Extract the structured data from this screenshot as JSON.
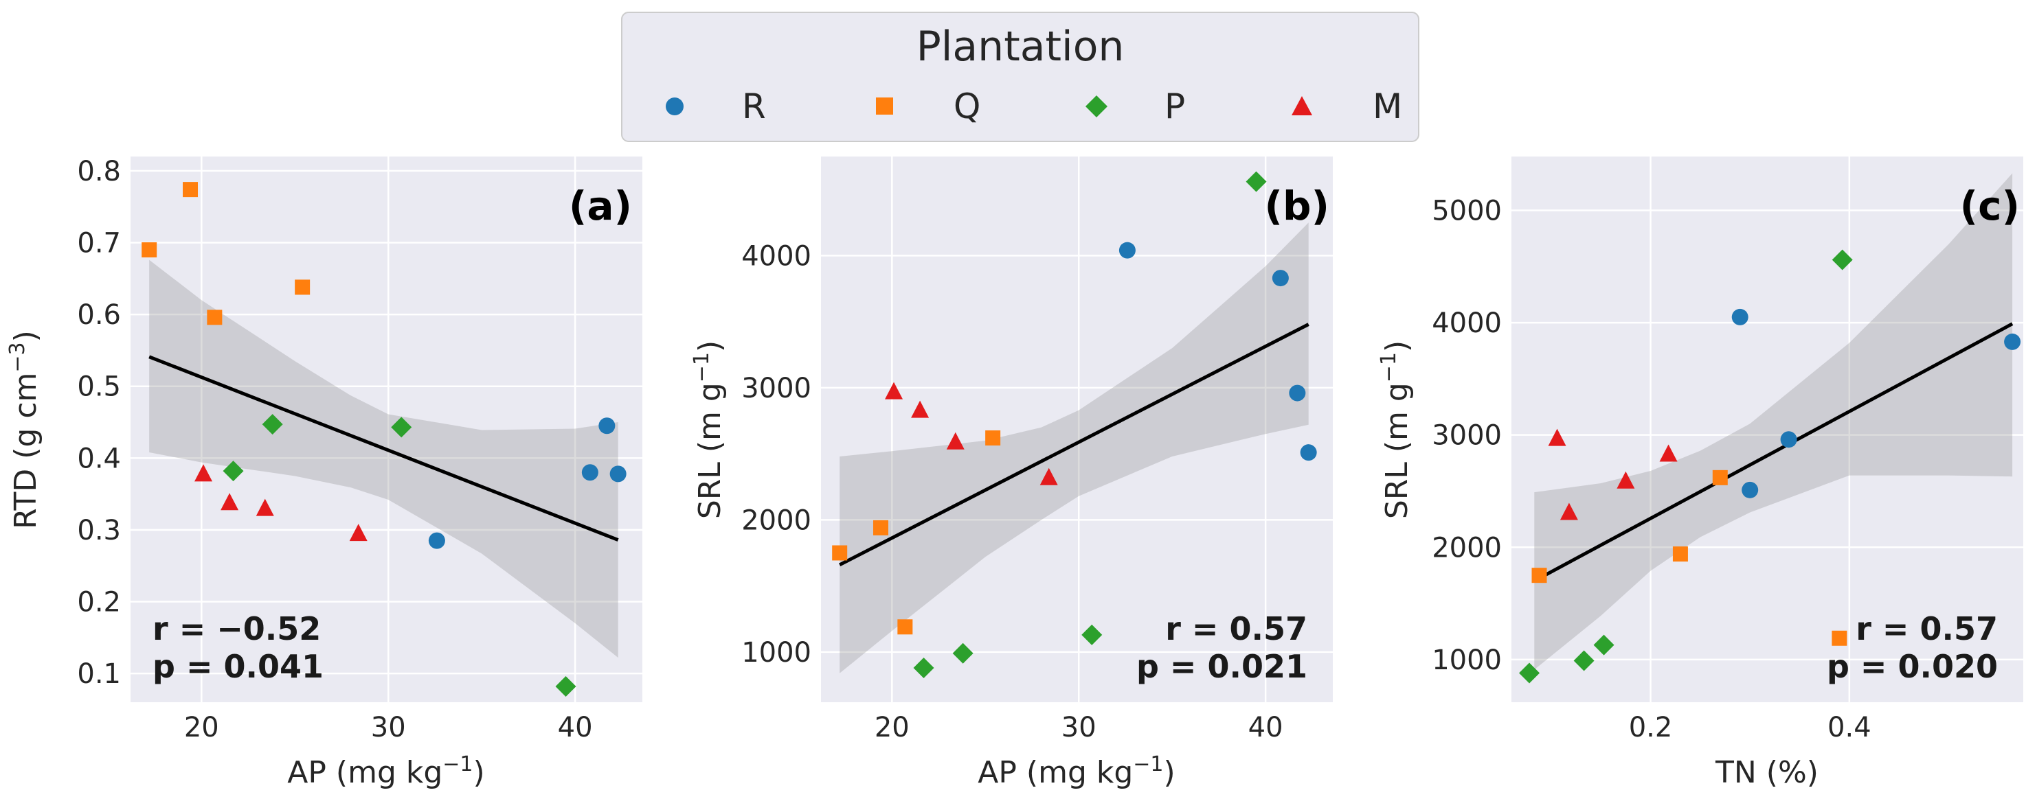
{
  "legend": {
    "title": "Plantation",
    "entries": [
      {
        "label": "R",
        "color": "#1f77b4",
        "marker": "circle"
      },
      {
        "label": "Q",
        "color": "#ff7f0e",
        "marker": "square"
      },
      {
        "label": "P",
        "color": "#2ca02c",
        "marker": "diamond"
      },
      {
        "label": "M",
        "color": "#e31a1c",
        "marker": "triangle"
      }
    ]
  },
  "chart_data": [
    {
      "type": "scatter",
      "panel": "(a)",
      "xlabel_main": "AP (mg kg",
      "xlabel_sup": "−1",
      "xlabel_tail": ")",
      "ylabel_main": "RTD (g cm",
      "ylabel_sup": "−3",
      "ylabel_tail": ")",
      "xlim": [
        16.2,
        43.6
      ],
      "ylim": [
        0.06,
        0.82
      ],
      "xticks": [
        20,
        30,
        40
      ],
      "yticks": [
        0.1,
        0.2,
        0.3,
        0.4,
        0.5,
        0.6,
        0.7,
        0.8
      ],
      "ytick_labels": [
        "0.1",
        "0.2",
        "0.3",
        "0.4",
        "0.5",
        "0.6",
        "0.7",
        "0.8"
      ],
      "stats": {
        "r": "r = −0.52",
        "p": "p = 0.041",
        "position": "bottom-left"
      },
      "fit": {
        "x": [
          17.2,
          42.3
        ],
        "y": [
          0.541,
          0.286
        ]
      },
      "ci": {
        "x": [
          17.2,
          20,
          25,
          28,
          30,
          35,
          40,
          42.3
        ],
        "upper": [
          0.676,
          0.62,
          0.535,
          0.487,
          0.461,
          0.439,
          0.441,
          0.45
        ],
        "lower": [
          0.408,
          0.394,
          0.375,
          0.359,
          0.342,
          0.267,
          0.17,
          0.122
        ]
      },
      "series": [
        {
          "name": "R",
          "x": [
            32.6,
            40.8,
            41.7,
            42.3
          ],
          "y": [
            0.285,
            0.38,
            0.445,
            0.378
          ]
        },
        {
          "name": "Q",
          "x": [
            17.2,
            19.4,
            20.7,
            25.4
          ],
          "y": [
            0.69,
            0.774,
            0.596,
            0.638
          ]
        },
        {
          "name": "P",
          "x": [
            21.7,
            23.8,
            30.7,
            39.5
          ],
          "y": [
            0.382,
            0.447,
            0.443,
            0.082
          ]
        },
        {
          "name": "M",
          "x": [
            20.1,
            21.5,
            23.4,
            28.4
          ],
          "y": [
            0.378,
            0.338,
            0.33,
            0.295
          ]
        }
      ]
    },
    {
      "type": "scatter",
      "panel": "(b)",
      "xlabel_main": "AP (mg kg",
      "xlabel_sup": "−1",
      "xlabel_tail": ")",
      "ylabel_main": "SRL (m g",
      "ylabel_sup": "−1",
      "ylabel_tail": ")",
      "xlim": [
        16.2,
        43.6
      ],
      "ylim": [
        620,
        4750
      ],
      "xticks": [
        20,
        30,
        40
      ],
      "yticks": [
        1000,
        2000,
        3000,
        4000
      ],
      "ytick_labels": [
        "1000",
        "2000",
        "3000",
        "4000"
      ],
      "stats": {
        "r": "r = 0.57",
        "p": "p = 0.021",
        "position": "bottom-right"
      },
      "fit": {
        "x": [
          17.2,
          42.3
        ],
        "y": [
          1660,
          3480
        ]
      },
      "ci": {
        "x": [
          17.2,
          20,
          25,
          28,
          30,
          35,
          40,
          42.3
        ],
        "upper": [
          2480,
          2520,
          2600,
          2700,
          2830,
          3300,
          3920,
          4250
        ],
        "lower": [
          840,
          1160,
          1720,
          2000,
          2180,
          2480,
          2650,
          2720
        ]
      },
      "series": [
        {
          "name": "R",
          "x": [
            32.6,
            40.8,
            41.7,
            42.3
          ],
          "y": [
            4040,
            3830,
            2960,
            2510
          ]
        },
        {
          "name": "Q",
          "x": [
            17.2,
            19.4,
            20.7,
            25.4
          ],
          "y": [
            1750,
            1940,
            1190,
            2620
          ]
        },
        {
          "name": "P",
          "x": [
            21.7,
            23.8,
            30.7,
            39.5
          ],
          "y": [
            880,
            990,
            1130,
            4560
          ]
        },
        {
          "name": "M",
          "x": [
            20.1,
            21.5,
            23.4,
            28.4
          ],
          "y": [
            2970,
            2830,
            2590,
            2320
          ]
        }
      ]
    },
    {
      "type": "scatter",
      "panel": "(c)",
      "xlabel_main": "TN (%)",
      "xlabel_sup": "",
      "xlabel_tail": "",
      "ylabel_main": "SRL (m g",
      "ylabel_sup": "−1",
      "ylabel_tail": ")",
      "xlim": [
        0.06,
        0.575
      ],
      "ylim": [
        620,
        5480
      ],
      "xticks": [
        0.2,
        0.4
      ],
      "xtick_labels": [
        "0.2",
        "0.4"
      ],
      "yticks": [
        1000,
        2000,
        3000,
        4000,
        5000
      ],
      "ytick_labels": [
        "1000",
        "2000",
        "3000",
        "4000",
        "5000"
      ],
      "stats": {
        "r": "r = 0.57",
        "p": "p = 0.020",
        "position": "bottom-right"
      },
      "fit": {
        "x": [
          0.083,
          0.564
        ],
        "y": [
          1700,
          3990
        ]
      },
      "ci": {
        "x": [
          0.083,
          0.15,
          0.2,
          0.25,
          0.3,
          0.4,
          0.5,
          0.564
        ],
        "upper": [
          2490,
          2570,
          2680,
          2860,
          3100,
          3820,
          4700,
          5330
        ],
        "lower": [
          910,
          1390,
          1790,
          2090,
          2310,
          2640,
          2640,
          2630
        ]
      },
      "series": [
        {
          "name": "R",
          "x": [
            0.29,
            0.3,
            0.339,
            0.564
          ],
          "y": [
            4050,
            2510,
            2960,
            3830
          ]
        },
        {
          "name": "Q",
          "x": [
            0.088,
            0.23,
            0.27,
            0.39
          ],
          "y": [
            1750,
            1940,
            2620,
            1190
          ]
        },
        {
          "name": "P",
          "x": [
            0.078,
            0.133,
            0.153,
            0.393
          ],
          "y": [
            880,
            990,
            1130,
            4560
          ]
        },
        {
          "name": "M",
          "x": [
            0.106,
            0.118,
            0.175,
            0.218
          ],
          "y": [
            2970,
            2310,
            2590,
            2830
          ]
        }
      ]
    }
  ]
}
